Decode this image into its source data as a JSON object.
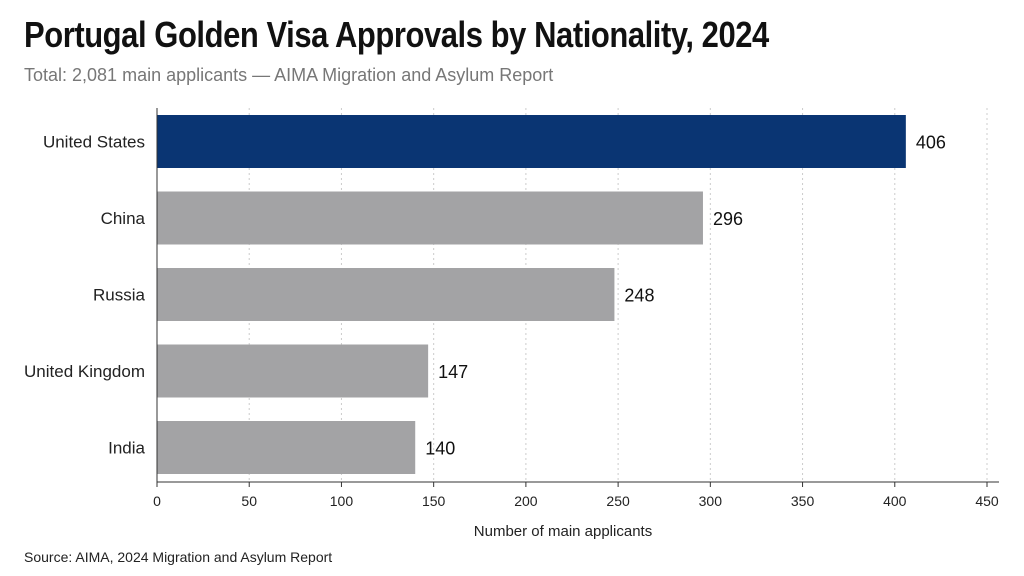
{
  "title": "Portugal Golden Visa Approvals by Nationality, 2024",
  "subtitle": "Total: 2,081 main applicants — AIMA Migration and Asylum Report",
  "source": "Source: AIMA, 2024 Migration and Asylum Report",
  "colors": {
    "highlight": "#0a3573",
    "bar": "#a3a3a5",
    "grid": "#cccccc",
    "axis": "#333333"
  },
  "chart_data": {
    "type": "bar",
    "orientation": "horizontal",
    "categories": [
      "United States",
      "China",
      "Russia",
      "United Kingdom",
      "India"
    ],
    "values": [
      406,
      296,
      248,
      147,
      140
    ],
    "highlight_index": 0,
    "xlabel": "Number of main applicants",
    "ylabel": "",
    "xlim": [
      0,
      450
    ],
    "xticks": [
      0,
      50,
      100,
      150,
      200,
      250,
      300,
      350,
      400,
      450
    ],
    "grid": "vertical dotted"
  }
}
